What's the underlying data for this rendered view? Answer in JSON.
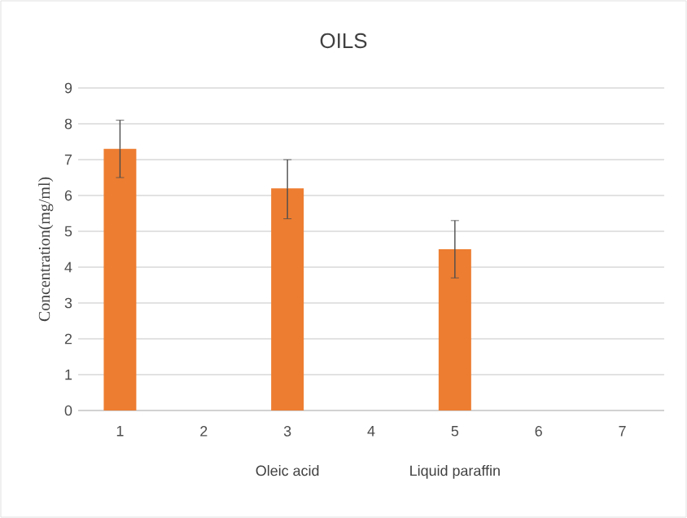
{
  "chart_data": {
    "type": "bar",
    "title": "OILS",
    "ylabel": "Concentration(mg/ml)",
    "categories": [
      "1",
      "2",
      "3",
      "4",
      "5",
      "6",
      "7"
    ],
    "values": [
      7.3,
      null,
      6.2,
      null,
      4.5,
      null,
      null
    ],
    "errors": [
      0.8,
      null,
      [
        5.35,
        7.0
      ],
      null,
      0.8,
      null,
      null
    ],
    "color": "#ed7d31",
    "ylim": [
      0,
      9
    ],
    "yticks": [
      0,
      1,
      2,
      3,
      4,
      5,
      6,
      7,
      8,
      9
    ],
    "grid": "y",
    "annotations": [
      "Oleic acid",
      "Liquid paraffin"
    ]
  }
}
